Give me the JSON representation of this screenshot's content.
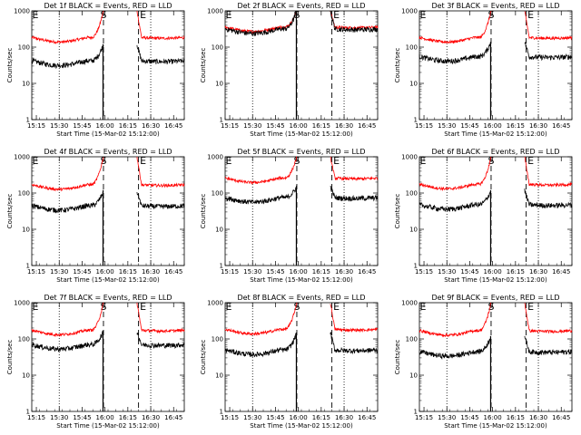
{
  "layout": {
    "rows": 3,
    "cols": 3
  },
  "colors": {
    "events": "#000000",
    "lld": "#ff0000",
    "axes": "#000000"
  },
  "chart_data": [
    {
      "type": "line",
      "title": "Det 1f BLACK = Events, RED = LLD",
      "ylabel": "Counts/sec",
      "xlabel": "Start Time (15-Mar-02 15:12:00)",
      "x_ticks": [
        "15:15",
        "15:30",
        "15:45",
        "16:00",
        "16:15",
        "16:30",
        "16:45"
      ],
      "y_ticks": [
        "1",
        "10",
        "100",
        "1000"
      ],
      "yscale": "log",
      "ylim": [
        1,
        1000
      ],
      "x_range": [
        "15:12",
        "16:52"
      ],
      "markers": {
        "S": "15:59",
        "E1": "15:12",
        "E2": "16:22"
      },
      "dotted_lines": [
        "15:30",
        "16:30"
      ],
      "series": [
        {
          "name": "Events",
          "baseline": 42,
          "rise_peak": 120
        },
        {
          "name": "LLD",
          "baseline": 185,
          "rise_peak": 1000
        }
      ]
    },
    {
      "type": "line",
      "title": "Det 2f BLACK = Events, RED = LLD",
      "ylabel": "Counts/sec",
      "xlabel": "Start Time (15-Mar-02 15:12:00)",
      "x_ticks": [
        "15:15",
        "15:30",
        "15:45",
        "16:00",
        "16:15",
        "16:30",
        "16:45"
      ],
      "y_ticks": [
        "1",
        "10",
        "100",
        "1000"
      ],
      "yscale": "log",
      "ylim": [
        1,
        1000
      ],
      "x_range": [
        "15:12",
        "16:52"
      ],
      "markers": {
        "S": "15:59",
        "E1": "15:12",
        "E2": "16:22"
      },
      "dotted_lines": [
        "15:30",
        "16:30"
      ],
      "series": [
        {
          "name": "Events",
          "baseline": 320,
          "rise_peak": 1000
        },
        {
          "name": "LLD",
          "baseline": 360,
          "rise_peak": 1000
        }
      ]
    },
    {
      "type": "line",
      "title": "Det 3f BLACK = Events, RED = LLD",
      "ylabel": "Counts/sec",
      "xlabel": "Start Time (15-Mar-02 15:12:00)",
      "x_ticks": [
        "15:15",
        "15:30",
        "15:45",
        "16:00",
        "16:15",
        "16:30",
        "16:45"
      ],
      "y_ticks": [
        "1",
        "10",
        "100",
        "1000"
      ],
      "yscale": "log",
      "ylim": [
        1,
        1000
      ],
      "x_range": [
        "15:12",
        "16:52"
      ],
      "markers": {
        "S": "15:59",
        "E1": "15:12",
        "E2": "16:22"
      },
      "dotted_lines": [
        "15:30",
        "16:30"
      ],
      "series": [
        {
          "name": "Events",
          "baseline": 55,
          "rise_peak": 140
        },
        {
          "name": "LLD",
          "baseline": 185,
          "rise_peak": 1000
        }
      ]
    },
    {
      "type": "line",
      "title": "Det 4f BLACK = Events, RED = LLD",
      "ylabel": "Counts/sec",
      "xlabel": "Start Time (15-Mar-02 15:12:00)",
      "x_ticks": [
        "15:15",
        "15:30",
        "15:45",
        "16:00",
        "16:15",
        "16:30",
        "16:45"
      ],
      "y_ticks": [
        "1",
        "10",
        "100",
        "1000"
      ],
      "yscale": "log",
      "ylim": [
        1,
        1000
      ],
      "x_range": [
        "15:12",
        "16:52"
      ],
      "markers": {
        "S": "15:59",
        "E1": "15:12",
        "E2": "16:22"
      },
      "dotted_lines": [
        "15:30",
        "16:30"
      ],
      "series": [
        {
          "name": "Events",
          "baseline": 45,
          "rise_peak": 110
        },
        {
          "name": "LLD",
          "baseline": 170,
          "rise_peak": 1000
        }
      ]
    },
    {
      "type": "line",
      "title": "Det 5f BLACK = Events, RED = LLD",
      "ylabel": "Counts/sec",
      "xlabel": "Start Time (15-Mar-02 15:12:00)",
      "x_ticks": [
        "15:15",
        "15:30",
        "15:45",
        "16:00",
        "16:15",
        "16:30",
        "16:45"
      ],
      "y_ticks": [
        "1",
        "10",
        "100",
        "1000"
      ],
      "yscale": "log",
      "ylim": [
        1,
        1000
      ],
      "x_range": [
        "15:12",
        "16:52"
      ],
      "markers": {
        "S": "15:59",
        "E1": "15:12",
        "E2": "16:22"
      },
      "dotted_lines": [
        "15:30",
        "16:30"
      ],
      "series": [
        {
          "name": "Events",
          "baseline": 75,
          "rise_peak": 150
        },
        {
          "name": "LLD",
          "baseline": 260,
          "rise_peak": 1000
        }
      ]
    },
    {
      "type": "line",
      "title": "Det 6f BLACK = Events, RED = LLD",
      "ylabel": "Counts/sec",
      "xlabel": "Start Time (15-Mar-02 15:12:00)",
      "x_ticks": [
        "15:15",
        "15:30",
        "15:45",
        "16:00",
        "16:15",
        "16:30",
        "16:45"
      ],
      "y_ticks": [
        "1",
        "10",
        "100",
        "1000"
      ],
      "yscale": "log",
      "ylim": [
        1,
        1000
      ],
      "x_range": [
        "15:12",
        "16:52"
      ],
      "markers": {
        "S": "15:59",
        "E1": "15:12",
        "E2": "16:22"
      },
      "dotted_lines": [
        "15:30",
        "16:30"
      ],
      "series": [
        {
          "name": "Events",
          "baseline": 48,
          "rise_peak": 120
        },
        {
          "name": "LLD",
          "baseline": 175,
          "rise_peak": 1000
        }
      ]
    },
    {
      "type": "line",
      "title": "Det 7f BLACK = Events, RED = LLD",
      "ylabel": "Counts/sec",
      "xlabel": "Start Time (15-Mar-02 15:12:00)",
      "x_ticks": [
        "15:15",
        "15:30",
        "15:45",
        "16:00",
        "16:15",
        "16:30",
        "16:45"
      ],
      "y_ticks": [
        "1",
        "10",
        "100",
        "1000"
      ],
      "yscale": "log",
      "ylim": [
        1,
        1000
      ],
      "x_range": [
        "15:12",
        "16:52"
      ],
      "markers": {
        "S": "15:59",
        "E1": "15:12",
        "E2": "16:22"
      },
      "dotted_lines": [
        "15:30",
        "16:30"
      ],
      "series": [
        {
          "name": "Events",
          "baseline": 70,
          "rise_peak": 160
        },
        {
          "name": "LLD",
          "baseline": 175,
          "rise_peak": 1000
        }
      ]
    },
    {
      "type": "line",
      "title": "Det 8f BLACK = Events, RED = LLD",
      "ylabel": "Counts/sec",
      "xlabel": "Start Time (15-Mar-02 15:12:00)",
      "x_ticks": [
        "15:15",
        "15:30",
        "15:45",
        "16:00",
        "16:15",
        "16:30",
        "16:45"
      ],
      "y_ticks": [
        "1",
        "10",
        "100",
        "1000"
      ],
      "yscale": "log",
      "ylim": [
        1,
        1000
      ],
      "x_range": [
        "15:12",
        "16:52"
      ],
      "markers": {
        "S": "15:59",
        "E1": "15:12",
        "E2": "16:22"
      },
      "dotted_lines": [
        "15:30",
        "16:30"
      ],
      "series": [
        {
          "name": "Events",
          "baseline": 50,
          "rise_peak": 150
        },
        {
          "name": "LLD",
          "baseline": 185,
          "rise_peak": 1000
        }
      ]
    },
    {
      "type": "line",
      "title": "Det 9f BLACK = Events, RED = LLD",
      "ylabel": "Counts/sec",
      "xlabel": "Start Time (15-Mar-02 15:12:00)",
      "x_ticks": [
        "15:15",
        "15:30",
        "15:45",
        "16:00",
        "16:15",
        "16:30",
        "16:45"
      ],
      "y_ticks": [
        "1",
        "10",
        "100",
        "1000"
      ],
      "yscale": "log",
      "ylim": [
        1,
        1000
      ],
      "x_range": [
        "15:12",
        "16:52"
      ],
      "markers": {
        "S": "15:59",
        "E1": "15:12",
        "E2": "16:22"
      },
      "dotted_lines": [
        "15:30",
        "16:30"
      ],
      "series": [
        {
          "name": "Events",
          "baseline": 45,
          "rise_peak": 120
        },
        {
          "name": "LLD",
          "baseline": 170,
          "rise_peak": 1000
        }
      ]
    }
  ]
}
